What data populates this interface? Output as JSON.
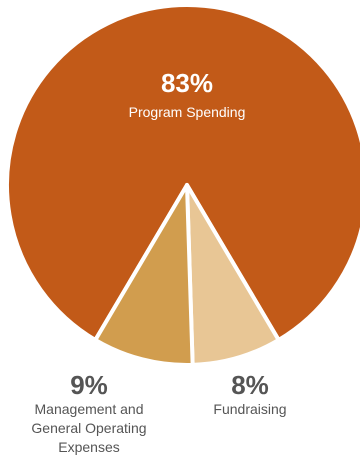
{
  "chart_data": {
    "type": "pie",
    "slices": [
      {
        "label": "Program Spending",
        "percent_label": "83%",
        "value": 83,
        "color": "#c25a18"
      },
      {
        "label": "Fundraising",
        "percent_label": "8%",
        "value": 8,
        "color": "#e8c695"
      },
      {
        "label": "Management and General Operating Expenses",
        "percent_label": "9%",
        "value": 9,
        "color": "#d19d4e"
      }
    ],
    "label_lines": {
      "management": [
        "Management and",
        "General Operating",
        "Expenses"
      ],
      "fundraising": [
        "Fundraising"
      ]
    },
    "inside_label_color": "#ffffff",
    "outside_label_color": "#555555",
    "separator_color": "#ffffff"
  }
}
